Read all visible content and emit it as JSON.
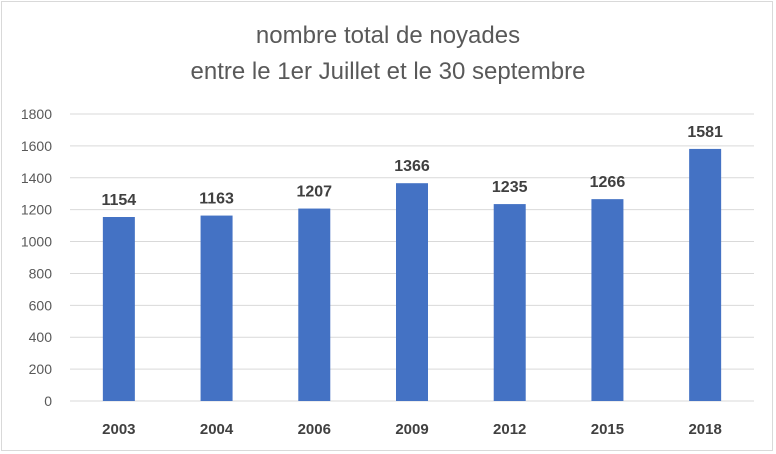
{
  "chart_data": {
    "type": "bar",
    "title_line1": "nombre total de noyades",
    "title_line2": "entre le 1er Juillet et le 30 septembre",
    "xlabel": "",
    "ylabel": "",
    "categories": [
      "2003",
      "2004",
      "2006",
      "2009",
      "2012",
      "2015",
      "2018"
    ],
    "values": [
      1154,
      1163,
      1207,
      1366,
      1235,
      1266,
      1581
    ],
    "ylim": [
      0,
      1800
    ],
    "yticks": [
      0,
      200,
      400,
      600,
      800,
      1000,
      1200,
      1400,
      1600,
      1800
    ],
    "grid": true,
    "legend": "none",
    "data_labels": true,
    "colors": {
      "bar": "#4472c4",
      "grid": "#d9d9d9",
      "text": "#595959",
      "labels": "#404040"
    }
  }
}
